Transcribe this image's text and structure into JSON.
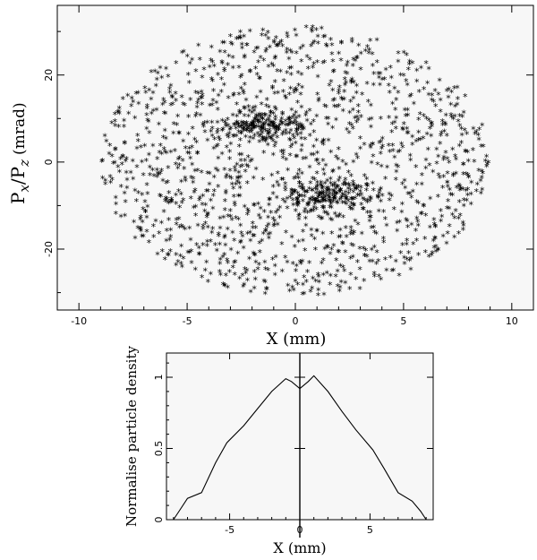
{
  "chart_data": [
    {
      "type": "scatter",
      "title": "",
      "xlabel": "X (mm)",
      "ylabel_main": "P",
      "ylabel_sub_x": "x",
      "ylabel_slash": "/",
      "ylabel_sub_z": "z",
      "ylabel_unit": "(mrad)",
      "xlim": [
        -11,
        11
      ],
      "ylim": [
        -34,
        36
      ],
      "xticks": [
        -10,
        -5,
        0,
        5,
        10
      ],
      "yticks": [
        -20,
        0,
        20
      ],
      "x_tick_labels": [
        "-10",
        "-5",
        "0",
        "5",
        "10"
      ],
      "y_tick_labels": [
        "-20",
        "0",
        "20"
      ],
      "marker": "*",
      "marker_color": "#000000",
      "background": "#f7f7f7",
      "distribution": {
        "shape": "ellipse",
        "x_halfwidth": 9,
        "y_halfheight": 31,
        "clusters": [
          {
            "x": -1.5,
            "y": 8
          },
          {
            "x": 1.5,
            "y": -8
          }
        ],
        "n_points": 1800
      }
    },
    {
      "type": "line",
      "title": "",
      "xlabel": "X (mm)",
      "ylabel": "Normalise particle density",
      "xlim": [
        -9.5,
        9.5
      ],
      "ylim": [
        0,
        1.17
      ],
      "xticks": [
        -5,
        0,
        5
      ],
      "yticks": [
        0,
        0.5,
        1
      ],
      "x_tick_labels": [
        "-5",
        "0",
        "5"
      ],
      "y_tick_labels": [
        "0",
        "0.5",
        "1"
      ],
      "series": [
        {
          "x": [
            -9.0,
            -8.6,
            -8.0,
            -7.0,
            -6.0,
            -5.2,
            -4.0,
            -3.0,
            -2.0,
            -1.0,
            -0.6,
            0.0,
            0.6,
            1.0,
            2.0,
            3.0,
            4.0,
            5.2,
            6.0,
            7.0,
            8.0,
            8.6,
            9.0
          ],
          "y": [
            0.0,
            0.06,
            0.15,
            0.19,
            0.4,
            0.54,
            0.66,
            0.78,
            0.9,
            0.99,
            0.97,
            0.92,
            0.97,
            1.01,
            0.9,
            0.76,
            0.63,
            0.49,
            0.36,
            0.19,
            0.13,
            0.06,
            0.0
          ]
        }
      ],
      "line_color": "#000000",
      "background": "#f7f7f7"
    }
  ]
}
